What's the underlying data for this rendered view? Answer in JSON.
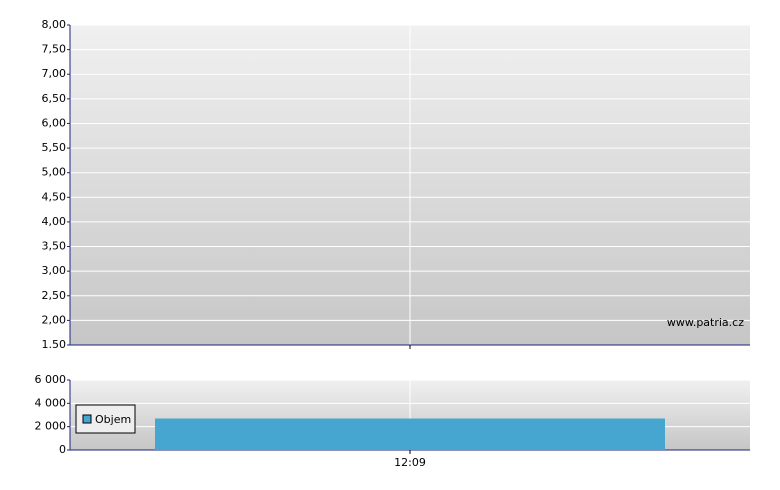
{
  "chart_data": [
    {
      "type": "line",
      "annotation": "www.patria.cz",
      "series": [],
      "ylim": [
        1.5,
        8
      ],
      "yticks": [
        {
          "value": 1.5,
          "label": "1.50"
        },
        {
          "value": 2,
          "label": "2,00"
        },
        {
          "value": 2.5,
          "label": "2,50"
        },
        {
          "value": 3,
          "label": "3,00"
        },
        {
          "value": 3.5,
          "label": "3,50"
        },
        {
          "value": 4,
          "label": "4,00"
        },
        {
          "value": 4.5,
          "label": "4,50"
        },
        {
          "value": 5,
          "label": "5,00"
        },
        {
          "value": 5.5,
          "label": "5,50"
        },
        {
          "value": 6,
          "label": "6,00"
        },
        {
          "value": 6.5,
          "label": "6,50"
        },
        {
          "value": 7,
          "label": "7,00"
        },
        {
          "value": 7.5,
          "label": "7,50"
        },
        {
          "value": 8,
          "label": "8,00"
        }
      ],
      "grid": true
    },
    {
      "type": "bar",
      "categories": [
        "12:09"
      ],
      "series": [
        {
          "name": "Objem",
          "color": "#46a6cf",
          "values": [
            2700
          ]
        }
      ],
      "ylim": [
        0,
        6000
      ],
      "yticks": [
        0,
        {
          "value": 2000,
          "label": "2 000"
        },
        {
          "value": 4000,
          "label": "4 000"
        },
        {
          "value": 6000,
          "label": "6 000"
        }
      ],
      "grid": true,
      "legend": "left"
    }
  ]
}
